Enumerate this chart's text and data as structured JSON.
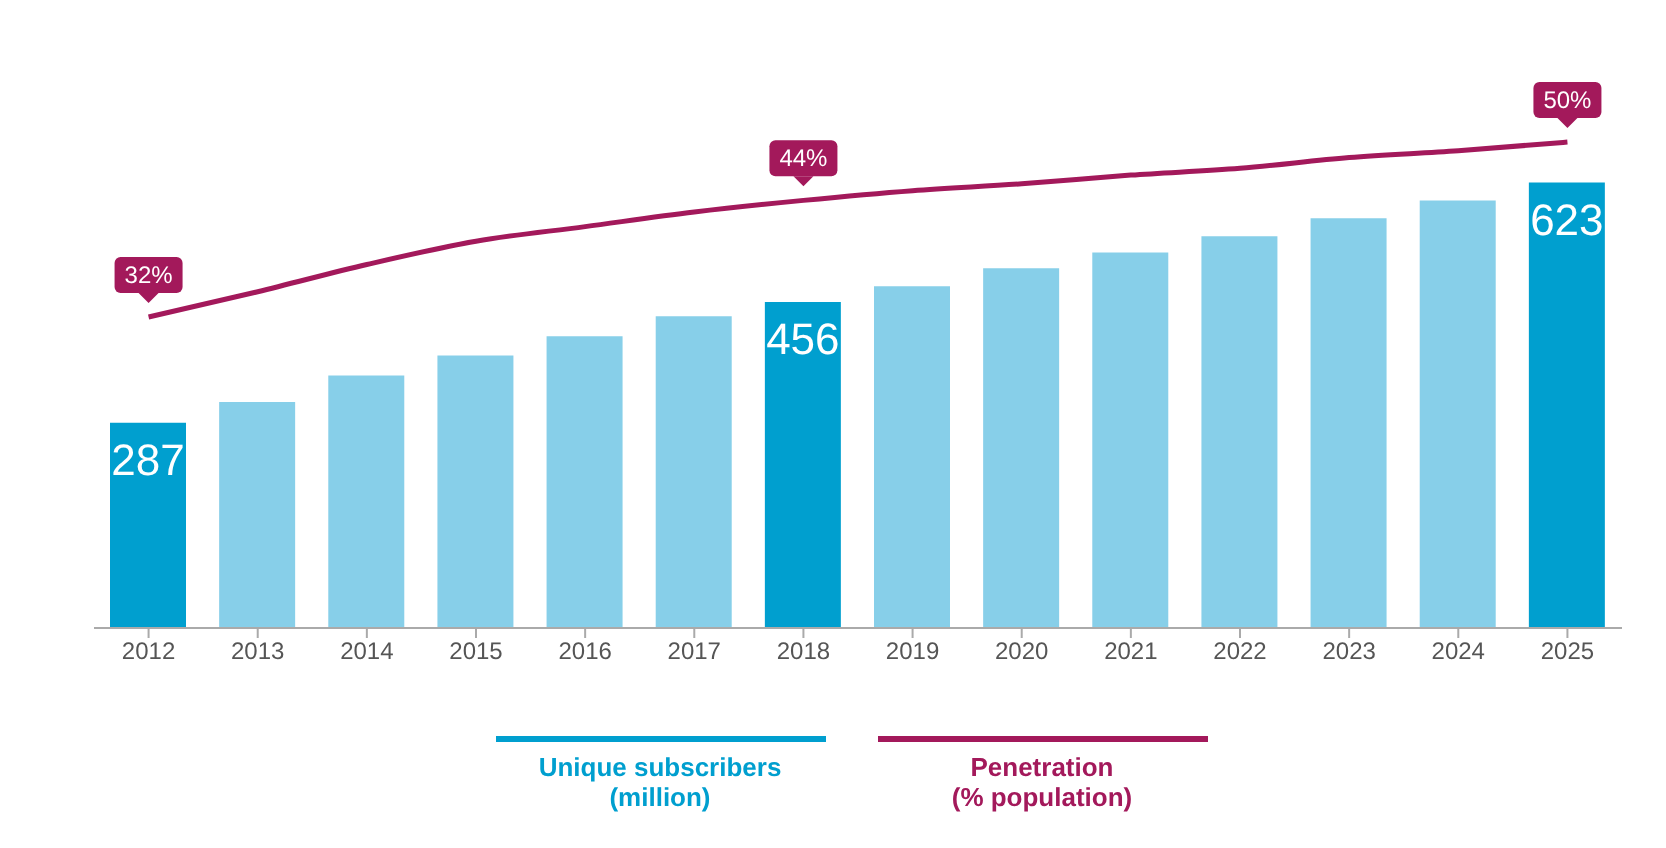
{
  "chart_data": {
    "type": "bar",
    "categories": [
      "2012",
      "2013",
      "2014",
      "2015",
      "2016",
      "2017",
      "2018",
      "2019",
      "2020",
      "2021",
      "2022",
      "2023",
      "2024",
      "2025"
    ],
    "series": [
      {
        "name": "Unique subscribers (million)",
        "color": "#009fcf",
        "colors": [
          "#009fcf",
          "#87cfe9",
          "#87cfe9",
          "#87cfe9",
          "#87cfe9",
          "#87cfe9",
          "#009fcf",
          "#87cfe9",
          "#87cfe9",
          "#87cfe9",
          "#87cfe9",
          "#87cfe9",
          "#87cfe9",
          "#009fcf"
        ],
        "values": [
          287,
          316,
          353,
          381,
          408,
          436,
          456,
          478,
          503,
          525,
          548,
          573,
          598,
          623
        ],
        "value_labels": [
          "287",
          null,
          null,
          null,
          null,
          null,
          "456",
          null,
          null,
          null,
          null,
          null,
          null,
          "623"
        ]
      },
      {
        "type": "line",
        "axis": "y2",
        "name": "Penetration (% population)",
        "color": "#a3195b",
        "values": [
          32,
          34.6,
          37.4,
          39.8,
          41.3,
          42.8,
          44,
          45,
          45.7,
          46.6,
          47.3,
          48.4,
          49.1,
          50
        ],
        "value_labels": [
          "32%",
          null,
          null,
          null,
          null,
          null,
          "44%",
          null,
          null,
          null,
          null,
          null,
          null,
          "50%"
        ]
      }
    ],
    "tick_labels": "x",
    "legend": "bottom",
    "marker": "none"
  }
}
